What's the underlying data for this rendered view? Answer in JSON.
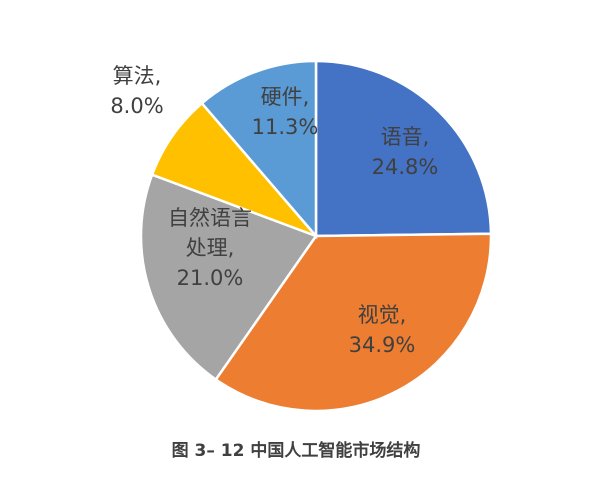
{
  "chart_data": {
    "type": "pie",
    "categories": [
      "语音",
      "视觉",
      "自然语言处理",
      "算法",
      "硬件"
    ],
    "values": [
      24.8,
      34.9,
      21.0,
      8.0,
      11.3
    ],
    "unit": "%",
    "colors": [
      "#4472C4",
      "#ED7D31",
      "#A5A5A5",
      "#FFC000",
      "#5B9BD5"
    ],
    "labels": [
      {
        "lines": [
          "语音,",
          "24.8%"
        ]
      },
      {
        "lines": [
          "视觉,",
          "34.9%"
        ]
      },
      {
        "lines": [
          "自然语言",
          "处理,",
          "21.0%"
        ]
      },
      {
        "lines": [
          "算法,",
          "8.0%"
        ]
      },
      {
        "lines": [
          "硬件,",
          "11.3%"
        ]
      }
    ],
    "start_angle_deg": 0,
    "direction": "clockwise",
    "legend": "none"
  },
  "caption": "图 3– 12  中国人工智能市场结构"
}
